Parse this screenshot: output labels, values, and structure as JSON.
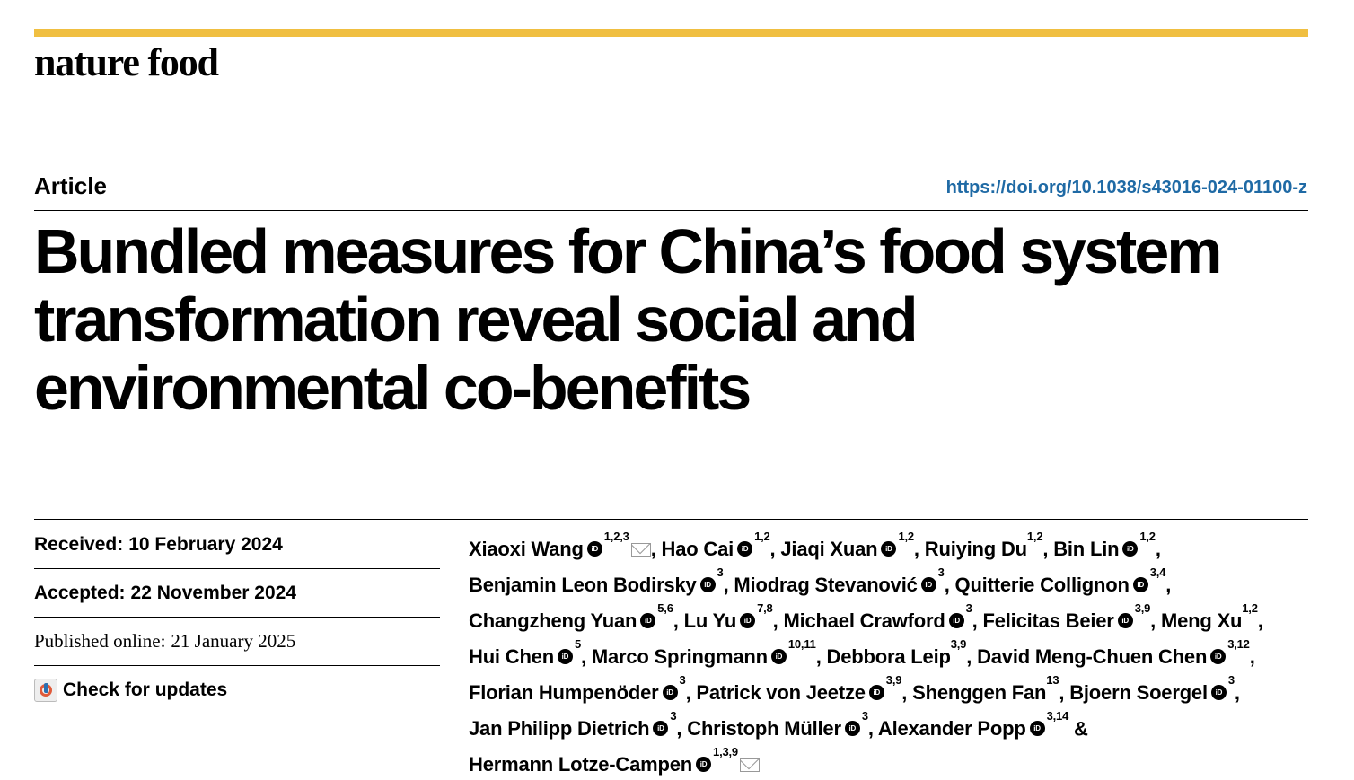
{
  "journal": "nature food",
  "article_type": "Article",
  "doi": "https://doi.org/10.1038/s43016-024-01100-z",
  "title": "Bundled measures for China’s food system transformation reveal social and environmental co-benefits",
  "meta": {
    "received_label": "Received:",
    "received_date": "10 February 2024",
    "accepted_label": "Accepted:",
    "accepted_date": "22 November 2024",
    "published_label": "Published online:",
    "published_date": "21 January 2025",
    "check_updates": "Check for updates"
  },
  "authors": [
    {
      "name": "Xiaoxi Wang",
      "orcid": true,
      "aff": "1,2,3",
      "mail": true
    },
    {
      "name": "Hao Cai",
      "orcid": true,
      "aff": "1,2"
    },
    {
      "name": "Jiaqi Xuan",
      "orcid": true,
      "aff": "1,2"
    },
    {
      "name": "Ruiying Du",
      "orcid": false,
      "aff": "1,2"
    },
    {
      "name": "Bin Lin",
      "orcid": true,
      "aff": "1,2"
    },
    {
      "name": "Benjamin Leon Bodirsky",
      "orcid": true,
      "aff": "3"
    },
    {
      "name": "Miodrag Stevanović",
      "orcid": true,
      "aff": "3"
    },
    {
      "name": "Quitterie Collignon",
      "orcid": true,
      "aff": "3,4"
    },
    {
      "name": "Changzheng Yuan",
      "orcid": true,
      "aff": "5,6"
    },
    {
      "name": "Lu Yu",
      "orcid": true,
      "aff": "7,8"
    },
    {
      "name": "Michael Crawford",
      "orcid": true,
      "aff": "3"
    },
    {
      "name": "Felicitas Beier",
      "orcid": true,
      "aff": "3,9"
    },
    {
      "name": "Meng Xu",
      "orcid": false,
      "aff": "1,2"
    },
    {
      "name": "Hui Chen",
      "orcid": true,
      "aff": "5"
    },
    {
      "name": "Marco Springmann",
      "orcid": true,
      "aff": "10,11"
    },
    {
      "name": "Debbora Leip",
      "orcid": false,
      "aff": "3,9"
    },
    {
      "name": "David Meng-Chuen Chen",
      "orcid": true,
      "aff": "3,12"
    },
    {
      "name": "Florian Humpenöder",
      "orcid": true,
      "aff": "3"
    },
    {
      "name": "Patrick von Jeetze",
      "orcid": true,
      "aff": "3,9"
    },
    {
      "name": "Shenggen Fan",
      "orcid": false,
      "aff": "13"
    },
    {
      "name": "Bjoern Soergel",
      "orcid": true,
      "aff": "3"
    },
    {
      "name": "Jan Philipp Dietrich",
      "orcid": true,
      "aff": "3"
    },
    {
      "name": "Christoph Müller",
      "orcid": true,
      "aff": "3"
    },
    {
      "name": "Alexander Popp",
      "orcid": true,
      "aff": "3,14"
    },
    {
      "name": "Hermann Lotze-Campen",
      "orcid": true,
      "aff": "1,3,9",
      "mail": true
    }
  ]
}
